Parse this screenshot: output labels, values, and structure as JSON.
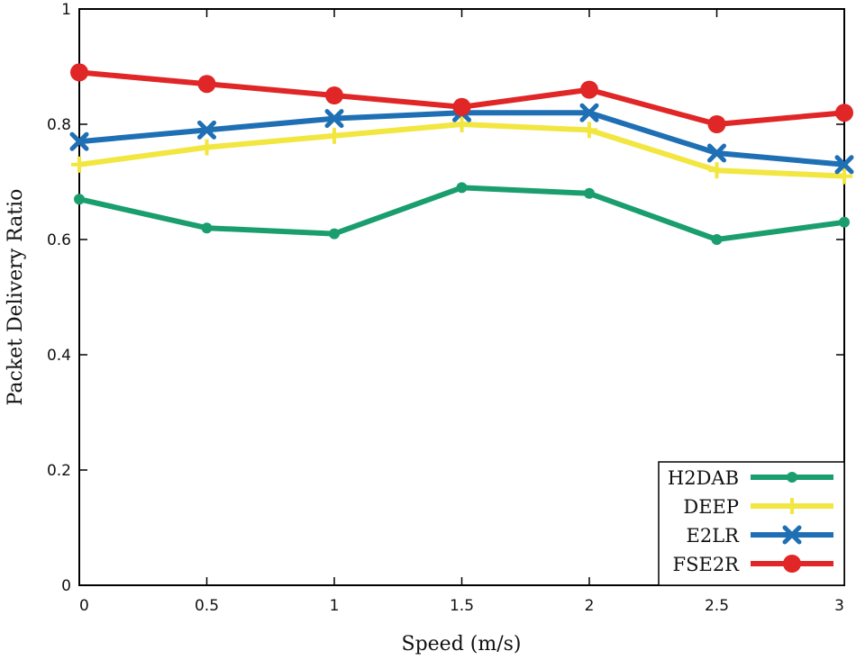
{
  "chart_data": {
    "type": "line",
    "title": "",
    "xlabel": "Speed (m/s)",
    "ylabel": "Packet Delivery Ratio",
    "x": [
      0,
      0.5,
      1,
      1.5,
      2,
      2.5,
      3
    ],
    "xlim": [
      0,
      3
    ],
    "ylim": [
      0,
      1
    ],
    "xticks": [
      "0",
      "0.5",
      "1",
      "1.5",
      "2",
      "2.5",
      "3"
    ],
    "yticks": [
      "0",
      "0.2",
      "0.4",
      "0.6",
      "0.8",
      "1"
    ],
    "grid": false,
    "legend_position": "bottom-right",
    "series": [
      {
        "name": "H2DAB",
        "color": "#1a9e6e",
        "marker": "circle-small",
        "values": [
          0.67,
          0.62,
          0.61,
          0.69,
          0.68,
          0.6,
          0.63
        ]
      },
      {
        "name": "DEEP",
        "color": "#f2e640",
        "marker": "plus",
        "values": [
          0.73,
          0.76,
          0.78,
          0.8,
          0.79,
          0.72,
          0.71
        ]
      },
      {
        "name": "E2LR",
        "color": "#1f6fb4",
        "marker": "x",
        "values": [
          0.77,
          0.79,
          0.81,
          0.82,
          0.82,
          0.75,
          0.73
        ]
      },
      {
        "name": "FSE2R",
        "color": "#e02626",
        "marker": "circle-large",
        "values": [
          0.89,
          0.87,
          0.85,
          0.83,
          0.86,
          0.8,
          0.82
        ]
      }
    ]
  }
}
